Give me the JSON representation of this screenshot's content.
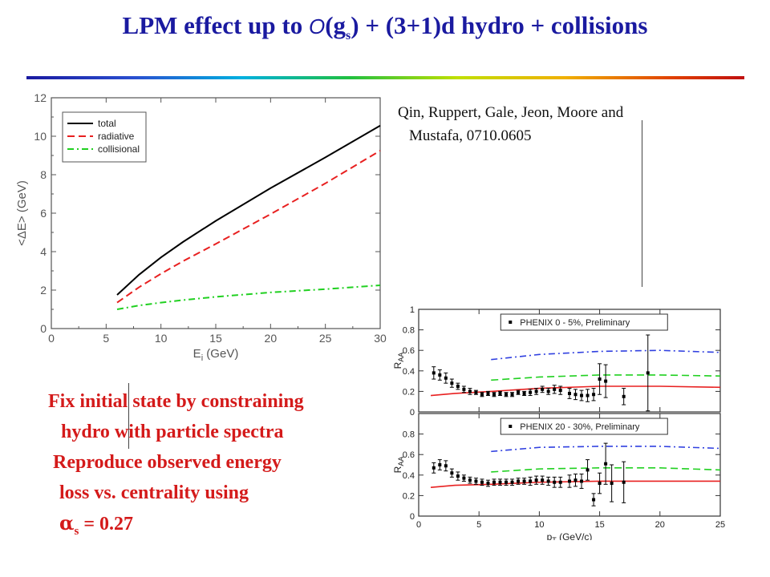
{
  "slide": {
    "title_pre": "LPM effect up to ",
    "title_o": "O",
    "title_g": "(g",
    "title_sub": "s",
    "title_post": ") + (3+1)d hydro + collisions",
    "citation_line1": "Qin, Ruppert, Gale, Jeon, Moore and",
    "citation_line2": "Mustafa, 0710.0605",
    "bullet1_line1": "Fix initial state by constraining",
    "bullet1_line2": "hydro with particle spectra",
    "bullet2_line1": "Reproduce observed energy",
    "bullet2_line2": "loss vs. centrality using",
    "alpha_symbol": "α",
    "alpha_sub": "s",
    "alpha_value": " = 0.27",
    "colors": {
      "title": "#1a1aa0",
      "bullets": "#d41a1a"
    }
  },
  "chart_data": [
    {
      "type": "line",
      "xlabel": "E_i (GeV)",
      "ylabel": "<ΔE> (GeV)",
      "xlim": [
        0,
        30
      ],
      "ylim": [
        0,
        12
      ],
      "x_ticks": [
        0,
        5,
        10,
        15,
        20,
        25,
        30
      ],
      "y_ticks": [
        0,
        2,
        4,
        6,
        8,
        10,
        12
      ],
      "legend_position": "top-left",
      "series": [
        {
          "name": "total",
          "color": "#000000",
          "dash": "solid",
          "x": [
            6,
            8,
            10,
            12,
            15,
            20,
            25,
            30
          ],
          "y": [
            1.75,
            2.8,
            3.7,
            4.5,
            5.6,
            7.3,
            8.9,
            10.55
          ]
        },
        {
          "name": "radiative",
          "color": "#e82020",
          "dash": "dashed",
          "x": [
            6,
            8,
            10,
            12,
            15,
            20,
            25,
            30
          ],
          "y": [
            1.35,
            2.15,
            2.85,
            3.5,
            4.4,
            5.95,
            7.55,
            9.25
          ]
        },
        {
          "name": "collisional",
          "color": "#20d020",
          "dash": "dashdot",
          "x": [
            6,
            8,
            10,
            12,
            15,
            20,
            25,
            30
          ],
          "y": [
            1.0,
            1.2,
            1.35,
            1.48,
            1.65,
            1.88,
            2.05,
            2.25
          ]
        }
      ]
    },
    {
      "type": "scatter",
      "panels": [
        {
          "legend": "PHENIX 0 - 5%, Preliminary",
          "ylabel": "R_AA",
          "xlim": [
            0,
            25
          ],
          "ylim": [
            0,
            1
          ],
          "y_ticks": [
            0,
            0.2,
            0.4,
            0.6,
            0.8,
            1
          ],
          "points": {
            "x": [
              1.25,
              1.75,
              2.25,
              2.75,
              3.25,
              3.75,
              4.25,
              4.75,
              5.25,
              5.75,
              6.25,
              6.75,
              7.25,
              7.75,
              8.25,
              8.75,
              9.25,
              9.75,
              10.25,
              10.75,
              11.25,
              11.75,
              12.5,
              13.0,
              13.5,
              14.0,
              14.5,
              15.0,
              15.5,
              17.0,
              19.0
            ],
            "y": [
              0.38,
              0.36,
              0.33,
              0.28,
              0.25,
              0.22,
              0.2,
              0.19,
              0.17,
              0.18,
              0.17,
              0.18,
              0.17,
              0.17,
              0.19,
              0.18,
              0.19,
              0.2,
              0.22,
              0.2,
              0.22,
              0.21,
              0.18,
              0.17,
              0.16,
              0.16,
              0.17,
              0.32,
              0.3,
              0.15,
              0.38
            ],
            "err": [
              0.06,
              0.05,
              0.05,
              0.04,
              0.03,
              0.03,
              0.03,
              0.02,
              0.02,
              0.02,
              0.02,
              0.02,
              0.02,
              0.02,
              0.02,
              0.02,
              0.03,
              0.03,
              0.03,
              0.03,
              0.04,
              0.04,
              0.05,
              0.05,
              0.05,
              0.06,
              0.06,
              0.15,
              0.16,
              0.08,
              0.37
            ]
          },
          "curves": [
            {
              "color": "#e82020",
              "dash": "solid",
              "x": [
                1,
                3,
                6,
                10,
                15,
                20,
                25
              ],
              "y": [
                0.16,
                0.18,
                0.2,
                0.23,
                0.25,
                0.25,
                0.24
              ]
            },
            {
              "color": "#20d020",
              "dash": "dashed",
              "x": [
                6,
                10,
                15,
                20,
                25
              ],
              "y": [
                0.31,
                0.34,
                0.36,
                0.36,
                0.35
              ]
            },
            {
              "color": "#3040e0",
              "dash": "dashdot",
              "x": [
                6,
                10,
                15,
                20,
                25
              ],
              "y": [
                0.51,
                0.56,
                0.59,
                0.6,
                0.58
              ]
            }
          ]
        },
        {
          "legend": "PHENIX 20 - 30%, Preliminary",
          "ylabel": "R_AA",
          "xlabel": "p_T (GeV/c)",
          "xlim": [
            0,
            25
          ],
          "ylim": [
            0,
            1
          ],
          "x_ticks": [
            0,
            5,
            10,
            15,
            20,
            25
          ],
          "y_ticks": [
            0,
            0.2,
            0.4,
            0.6,
            0.8
          ],
          "points": {
            "x": [
              1.25,
              1.75,
              2.25,
              2.75,
              3.25,
              3.75,
              4.25,
              4.75,
              5.25,
              5.75,
              6.25,
              6.75,
              7.25,
              7.75,
              8.25,
              8.75,
              9.25,
              9.75,
              10.25,
              10.75,
              11.25,
              11.75,
              12.5,
              13.0,
              13.5,
              14.0,
              14.5,
              15.0,
              15.5,
              16.0,
              17.0
            ],
            "y": [
              0.47,
              0.5,
              0.49,
              0.42,
              0.39,
              0.37,
              0.35,
              0.34,
              0.33,
              0.32,
              0.33,
              0.33,
              0.33,
              0.33,
              0.34,
              0.34,
              0.34,
              0.35,
              0.35,
              0.34,
              0.33,
              0.33,
              0.34,
              0.35,
              0.34,
              0.45,
              0.16,
              0.32,
              0.51,
              0.32,
              0.33
            ],
            "err": [
              0.05,
              0.05,
              0.05,
              0.04,
              0.04,
              0.03,
              0.03,
              0.03,
              0.03,
              0.03,
              0.03,
              0.03,
              0.03,
              0.03,
              0.03,
              0.03,
              0.04,
              0.04,
              0.04,
              0.04,
              0.05,
              0.05,
              0.06,
              0.06,
              0.07,
              0.1,
              0.06,
              0.1,
              0.2,
              0.18,
              0.2
            ]
          },
          "curves": [
            {
              "color": "#e82020",
              "dash": "solid",
              "x": [
                1,
                3,
                6,
                10,
                15,
                20,
                25
              ],
              "y": [
                0.28,
                0.3,
                0.31,
                0.33,
                0.34,
                0.34,
                0.34
              ]
            },
            {
              "color": "#20d020",
              "dash": "dashed",
              "x": [
                6,
                10,
                15,
                20,
                25
              ],
              "y": [
                0.43,
                0.46,
                0.47,
                0.47,
                0.45
              ]
            },
            {
              "color": "#3040e0",
              "dash": "dashdot",
              "x": [
                6,
                10,
                15,
                20,
                25
              ],
              "y": [
                0.63,
                0.67,
                0.68,
                0.68,
                0.66
              ]
            }
          ]
        }
      ]
    }
  ]
}
